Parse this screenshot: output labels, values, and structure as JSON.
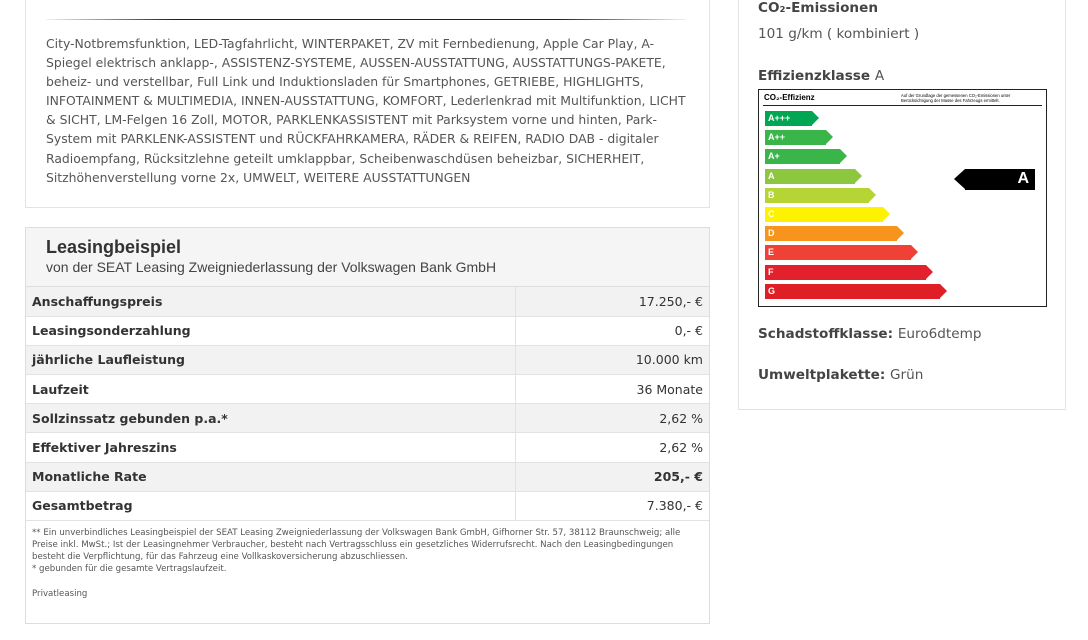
{
  "equipment": {
    "text": "City-Notbremsfunktion, LED-Tagfahrlicht, WINTERPAKET, ZV mit Fernbedienung, Apple Car Play, A-Spiegel elektrisch anklapp-, ASSISTENZ-SYSTEME, AUSSEN-AUSSTATTUNG, AUSSTATTUNGS-PAKETE, beheiz- und verstellbar, Full Link und Induktionsladen für Smartphones, GETRIEBE, HIGHLIGHTS, INFOTAINMENT & MULTIMEDIA, INNEN-AUSSTATTUNG, KOMFORT, Lederlenkrad mit Multifunktion, LICHT & SICHT, LM-Felgen 16 Zoll, MOTOR, PARKLENKASSISTENT mit Parksystem vorne und hinten, Park-System mit PARKLENK-ASSISTENT und RÜCKFAHRKAMERA, RÄDER & REIFEN, RADIO DAB - digitaler Radioempfang, Rücksitzlehne geteilt umklappbar, Scheibenwaschdüsen beheizbar, SICHERHEIT, Sitzhöhenverstellung vorne 2x, UMWELT, WEITERE AUSSTATTUNGEN"
  },
  "leasing": {
    "title": "Leasingbeispiel",
    "subtitle": "von der SEAT Leasing Zweigniederlassung der Volkswagen Bank GmbH",
    "rows": [
      {
        "label": "Anschaffungspreis",
        "value": "17.250,- €"
      },
      {
        "label": "Leasingsonderzahlung",
        "value": "0,- €"
      },
      {
        "label": "jährliche Laufleistung",
        "value": "10.000 km"
      },
      {
        "label": "Laufzeit",
        "value": "36 Monate"
      },
      {
        "label": "Sollzinssatz gebunden p.a.*",
        "value": "2,62 %"
      },
      {
        "label": "Effektiver Jahreszins",
        "value": "2,62 %"
      },
      {
        "label": "Monatliche Rate",
        "value": "205,- €"
      },
      {
        "label": "Gesamtbetrag",
        "value": "7.380,- €"
      }
    ],
    "footnote_1": "** Ein unverbindliches Leasingbeispiel der SEAT Leasing Zweigniederlassung der Volkswagen Bank GmbH, Gifhorner Str. 57, 38112 Braunschweig; alle Preise inkl. MwSt.; Ist der Leasingnehmer Verbraucher, besteht nach Vertragsschluss ein gesetzliches Widerrufsrecht. Nach den Leasingbedingungen besteht die Verpflichtung, für das Fahrzeug eine Vollkaskoversicherung abzuschliessen.",
    "footnote_2": "* gebunden für die gesamte Vertragslaufzeit.",
    "private_label": "Privatleasing"
  },
  "emissions": {
    "co2_heading": "CO₂-Emissionen",
    "co2_value": "101 g/km ( kombiniert )",
    "efficiency_heading": "Effizienzklasse",
    "efficiency_value": "A",
    "label_title": "CO₂-Effizienz",
    "label_note": "Auf der Grundlage der gemessenen CO₂-Emissionen unter Berücksichtigung der Masse des Fahrzeugs ermittelt.",
    "classes": [
      {
        "name": "A+++",
        "color": "#00a651"
      },
      {
        "name": "A++",
        "color": "#39b54a"
      },
      {
        "name": "A+",
        "color": "#3ab54a"
      },
      {
        "name": "A",
        "color": "#8dc63f"
      },
      {
        "name": "B",
        "color": "#b6d433"
      },
      {
        "name": "C",
        "color": "#fff200"
      },
      {
        "name": "D",
        "color": "#f7941d"
      },
      {
        "name": "E",
        "color": "#ef4136"
      },
      {
        "name": "F",
        "color": "#e3212d"
      },
      {
        "name": "G",
        "color": "#e01e25"
      }
    ],
    "marker_value": "A",
    "pollutant_heading": "Schadstoffklasse:",
    "pollutant_value": "Euro6dtemp",
    "sticker_heading": "Umweltplakette:",
    "sticker_value": "Grün"
  }
}
